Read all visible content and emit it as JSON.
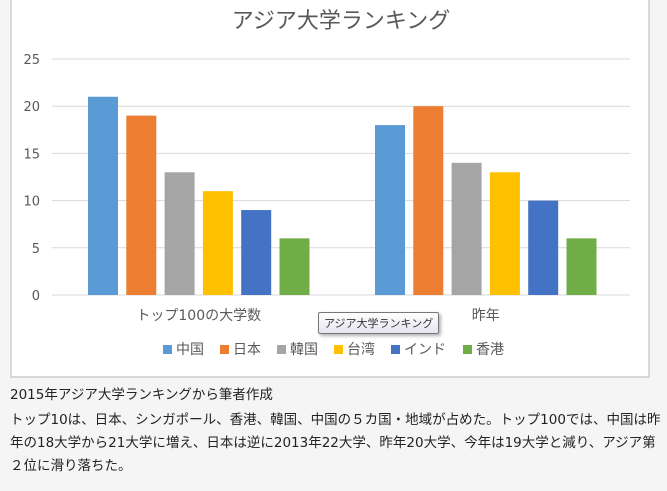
{
  "chart_data": {
    "type": "bar",
    "title": "アジア大学ランキング",
    "categories": [
      "トップ100の大学数",
      "昨年"
    ],
    "series": [
      {
        "name": "中国",
        "color": "#5b9bd5",
        "values": [
          21,
          18
        ]
      },
      {
        "name": "日本",
        "color": "#ed7d31",
        "values": [
          19,
          20
        ]
      },
      {
        "name": "韓国",
        "color": "#a5a5a5",
        "values": [
          13,
          14
        ]
      },
      {
        "name": "台湾",
        "color": "#ffc000",
        "values": [
          11,
          13
        ]
      },
      {
        "name": "インド",
        "color": "#4472c4",
        "values": [
          9,
          10
        ]
      },
      {
        "name": "香港",
        "color": "#70ad47",
        "values": [
          6,
          6
        ]
      }
    ],
    "yticks": [
      0,
      5,
      10,
      15,
      20,
      25
    ],
    "ylim": [
      0,
      25
    ],
    "grid": true,
    "legend": "bottom"
  },
  "tooltip": "アジア大学ランキング",
  "caption": "2015年アジア大学ランキングから筆者作成",
  "body": "トップ10は、日本、シンガポール、香港、韓国、中国の５カ国・地域が占めた。トップ100では、中国は昨年の18大学から21大学に増え、日本は逆に2013年22大学、昨年20大学、今年は19大学と減り、アジア第２位に滑り落ちた。"
}
